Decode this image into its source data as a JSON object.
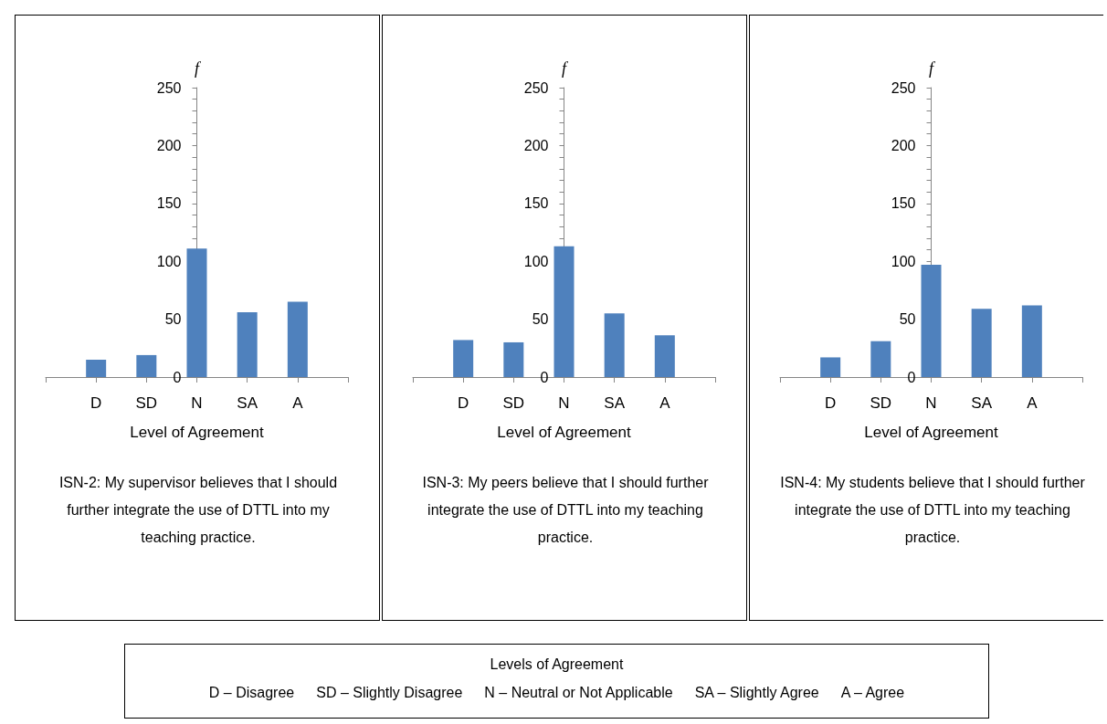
{
  "chart_data": [
    {
      "type": "bar",
      "title": "ISN-2: My supervisor believes that I should further integrate the use of DTTL into my teaching practice.",
      "xlabel": "Level of Agreement",
      "ylabel": "f",
      "categories": [
        "D",
        "SD",
        "N",
        "SA",
        "A"
      ],
      "values": [
        15,
        19,
        111,
        56,
        65
      ],
      "color": "#4f81bd",
      "ylim": [
        0,
        250
      ],
      "yticks": [
        0,
        50,
        100,
        150,
        200,
        250
      ]
    },
    {
      "type": "bar",
      "title": "ISN-3: My peers believe that I should further integrate the use of DTTL into my teaching practice.",
      "xlabel": "Level of Agreement",
      "ylabel": "f",
      "categories": [
        "D",
        "SD",
        "N",
        "SA",
        "A"
      ],
      "values": [
        32,
        30,
        113,
        55,
        36
      ],
      "color": "#4f81bd",
      "ylim": [
        0,
        250
      ],
      "yticks": [
        0,
        50,
        100,
        150,
        200,
        250
      ]
    },
    {
      "type": "bar",
      "title": "ISN-4: My students believe that I should further integrate the use of DTTL into my teaching practice.",
      "xlabel": "Level of Agreement",
      "ylabel": "f",
      "categories": [
        "D",
        "SD",
        "N",
        "SA",
        "A"
      ],
      "values": [
        17,
        31,
        97,
        59,
        62
      ],
      "color": "#4f81bd",
      "ylim": [
        0,
        250
      ],
      "yticks": [
        0,
        50,
        100,
        150,
        200,
        250
      ]
    },
    {
      "type": "other",
      "title": "Levels of Agreement",
      "annotations": [
        "D – Disagree",
        "SD – Slightly Disagree",
        "N – Neutral or Not Applicable",
        "SA – Slightly Agree",
        "A – Agree"
      ]
    }
  ]
}
